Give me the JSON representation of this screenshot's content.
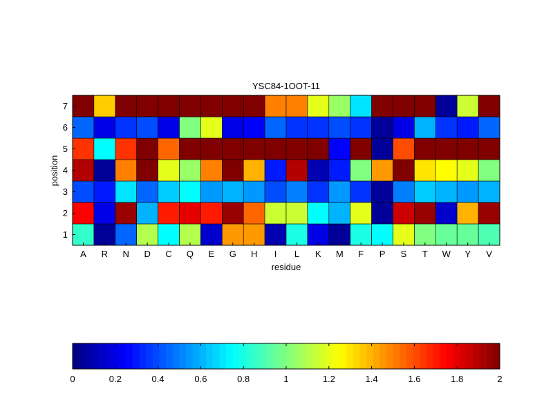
{
  "chart_data": {
    "type": "heatmap",
    "title": "YSC84-1OOT-11",
    "xlabel": "residue",
    "ylabel": "position",
    "x_categories": [
      "A",
      "R",
      "N",
      "D",
      "C",
      "Q",
      "E",
      "G",
      "H",
      "I",
      "L",
      "K",
      "M",
      "F",
      "P",
      "S",
      "T",
      "W",
      "Y",
      "V"
    ],
    "y_categories": [
      "1",
      "2",
      "3",
      "4",
      "5",
      "6",
      "7"
    ],
    "values": [
      [
        0.85,
        0.05,
        0.45,
        1.1,
        0.75,
        1.1,
        0.15,
        1.45,
        1.45,
        0.1,
        0.8,
        0.2,
        0.05,
        0.8,
        0.75,
        1.2,
        1.0,
        0.95,
        0.95,
        0.9
      ],
      [
        1.75,
        0.2,
        1.95,
        0.6,
        1.7,
        1.8,
        1.7,
        1.95,
        1.55,
        1.15,
        1.15,
        0.75,
        0.6,
        1.2,
        0.05,
        1.85,
        1.95,
        0.15,
        1.4,
        1.95
      ],
      [
        0.4,
        0.3,
        0.7,
        0.45,
        0.65,
        0.75,
        0.55,
        0.6,
        0.55,
        0.4,
        0.5,
        0.35,
        0.55,
        0.35,
        0.05,
        0.5,
        0.65,
        0.6,
        0.55,
        0.6
      ],
      [
        1.9,
        0.05,
        1.5,
        2.0,
        1.2,
        1.05,
        1.5,
        2.0,
        1.4,
        0.3,
        1.9,
        0.1,
        0.3,
        1.0,
        1.45,
        2.0,
        1.3,
        1.25,
        1.2,
        1.0
      ],
      [
        1.65,
        0.75,
        1.65,
        2.0,
        1.55,
        2.0,
        2.0,
        2.0,
        2.0,
        2.0,
        2.0,
        2.0,
        0.25,
        2.0,
        0.05,
        1.6,
        2.0,
        2.0,
        2.0,
        2.0
      ],
      [
        0.45,
        0.2,
        0.35,
        0.4,
        0.2,
        1.0,
        1.2,
        0.2,
        0.25,
        0.45,
        0.35,
        0.35,
        0.4,
        0.35,
        0.05,
        0.2,
        0.6,
        0.35,
        0.3,
        0.45
      ],
      [
        2.0,
        1.35,
        2.0,
        2.0,
        2.0,
        2.0,
        2.0,
        2.0,
        2.0,
        1.5,
        1.5,
        1.2,
        1.05,
        0.7,
        2.0,
        2.0,
        2.0,
        0.05,
        1.15,
        2.0
      ]
    ],
    "colormap": "jet",
    "clim": [
      0,
      2
    ],
    "colorbar": {
      "orientation": "horizontal",
      "location": "bottom",
      "ticks": [
        0,
        0.2,
        0.4,
        0.6,
        0.8,
        1,
        1.2,
        1.4,
        1.6,
        1.8,
        2
      ],
      "tick_labels": [
        "0",
        "0.2",
        "0.4",
        "0.6",
        "0.8",
        "1",
        "1.2",
        "1.4",
        "1.6",
        "1.8",
        "2"
      ]
    },
    "grid": false
  }
}
